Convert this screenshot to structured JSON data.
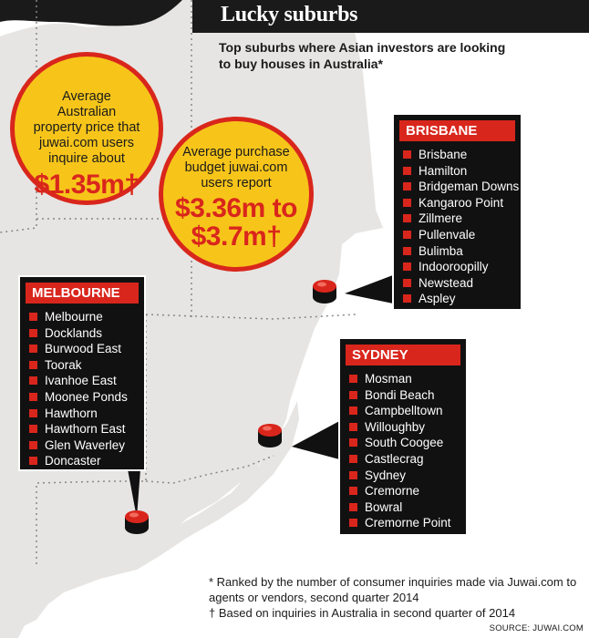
{
  "title": "Lucky suburbs",
  "subtitle": "Top suburbs where Asian investors are looking to buy houses in Australia*",
  "callouts": [
    {
      "label": "Average Australian property price that juwai.com users inquire about",
      "value": "$1.35m†"
    },
    {
      "label": "Average purchase budget juwai.com users report",
      "value": "$3.36m to $3.7m†"
    }
  ],
  "cities": {
    "brisbane": {
      "name": "BRISBANE",
      "suburbs": [
        "Brisbane",
        "Hamilton",
        "Bridgeman Downs",
        "Kangaroo Point",
        "Zillmere",
        "Pullenvale",
        "Bulimba",
        "Indooroopilly",
        "Newstead",
        "Aspley"
      ]
    },
    "melbourne": {
      "name": "MELBOURNE",
      "suburbs": [
        "Melbourne",
        "Docklands",
        "Burwood East",
        "Toorak",
        "Ivanhoe East",
        "Moonee Ponds",
        "Hawthorn",
        "Hawthorn East",
        "Glen Waverley",
        "Doncaster"
      ]
    },
    "sydney": {
      "name": "SYDNEY",
      "suburbs": [
        "Mosman",
        "Bondi Beach",
        "Campbelltown",
        "Willoughby",
        "South Coogee",
        "Castlecrag",
        "Sydney",
        "Cremorne",
        "Bowral",
        "Cremorne Point"
      ]
    }
  },
  "footnotes": [
    "* Ranked by the number of consumer inquiries made via Juwai.com to agents or vendors, second quarter 2014",
    "† Based on inquiries in Australia in second quarter of 2014"
  ],
  "source": "SOURCE: JUWAI.COM",
  "colors": {
    "accent": "#d9261c",
    "highlight": "#f7c51a",
    "land": "#e6e5e3",
    "dark": "#111111"
  }
}
